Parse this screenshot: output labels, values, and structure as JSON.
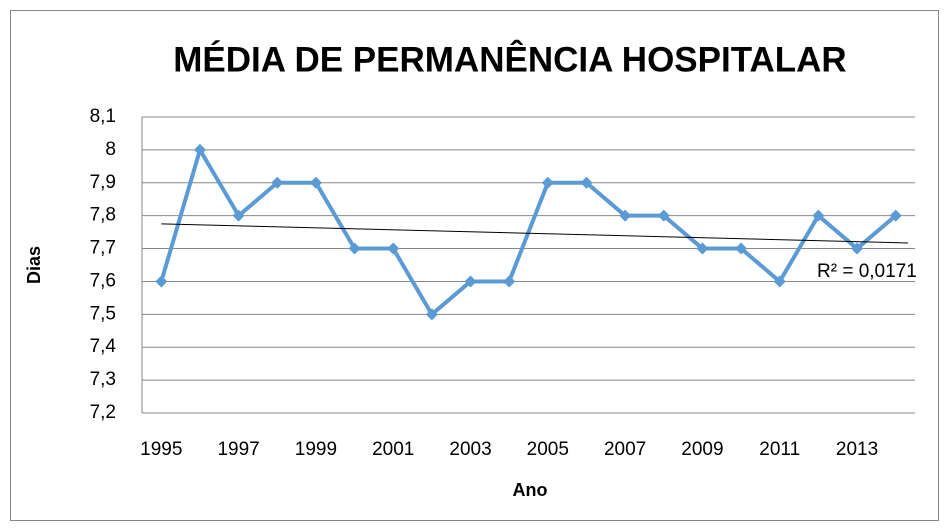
{
  "chart_data": {
    "type": "line",
    "title": "MÉDIA DE PERMANÊNCIA HOSPITALAR",
    "x_label": "Ano",
    "y_label": "Dias",
    "categories": [
      "1995",
      null,
      "1997",
      null,
      "1999",
      null,
      "2001",
      null,
      "2003",
      null,
      "2005",
      null,
      "2007",
      null,
      "2009",
      null,
      "2011",
      null,
      "2013",
      null
    ],
    "series": [
      {
        "name": "Dias",
        "color": "#5b9bd5",
        "values": [
          7.6,
          8.0,
          7.8,
          7.9,
          7.9,
          7.7,
          7.7,
          7.5,
          7.6,
          7.6,
          7.9,
          7.9,
          7.8,
          7.8,
          7.7,
          7.7,
          7.6,
          7.8,
          7.7,
          7.8
        ]
      }
    ],
    "trendline": {
      "values": [
        7.775,
        7.717
      ],
      "color": "#000000",
      "annotation": "R² = 0,0171"
    },
    "ylim": [
      7.2,
      8.1
    ],
    "yticks": [
      {
        "value": 7.2,
        "label": "7,2"
      },
      {
        "value": 7.3,
        "label": "7,3"
      },
      {
        "value": 7.4,
        "label": "7,4"
      },
      {
        "value": 7.5,
        "label": "7,5"
      },
      {
        "value": 7.6,
        "label": "7,6"
      },
      {
        "value": 7.7,
        "label": "7,7"
      },
      {
        "value": 7.8,
        "label": "7,8"
      },
      {
        "value": 7.9,
        "label": "7,9"
      },
      8,
      {
        "value": 8.1,
        "label": "8,1"
      }
    ],
    "grid": true,
    "legend": false
  }
}
